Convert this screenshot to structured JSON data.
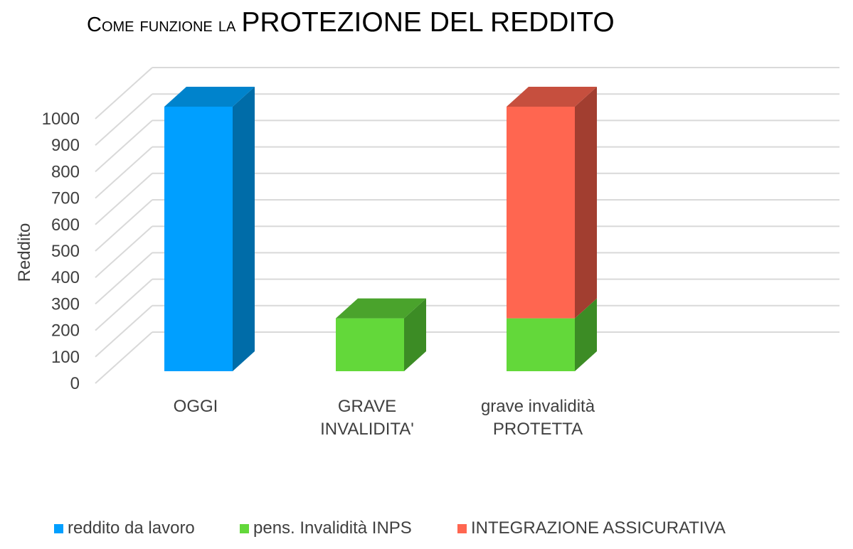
{
  "title": {
    "lead_small": "Come funzione la ",
    "main": "PROTEZIONE DEL REDDITO"
  },
  "chart_data": {
    "type": "bar",
    "stacked": true,
    "three_d": true,
    "title": "Come funzione la PROTEZIONE DEL REDDITO",
    "xlabel": "",
    "ylabel": "Reddito",
    "ylim": [
      0,
      1000
    ],
    "y_ticks": [
      "0",
      "100",
      "200",
      "300",
      "400",
      "500",
      "600",
      "700",
      "800",
      "900",
      "1000"
    ],
    "grid": true,
    "legend_position": "bottom",
    "categories": [
      [
        "OGGI"
      ],
      [
        "GRAVE",
        "INVALIDITA'"
      ],
      [
        "grave invalidità",
        "PROTETTA"
      ]
    ],
    "series": [
      {
        "name": "reddito da lavoro",
        "values": [
          1000,
          0,
          0
        ],
        "color": "#009FFF",
        "side_color": "#006CA8",
        "top_color": "#0083CC"
      },
      {
        "name": "pens. Invalidità INPS",
        "values": [
          0,
          200,
          200
        ],
        "color": "#63D83A",
        "side_color": "#3C8C25",
        "top_color": "#4AA32C"
      },
      {
        "name": "INTEGRAZIONE ASSICURATIVA",
        "values": [
          0,
          0,
          800
        ],
        "color": "#FF6650",
        "side_color": "#A23E30",
        "top_color": "#C64F3E"
      }
    ],
    "axis_color": "#D9D9D9"
  }
}
